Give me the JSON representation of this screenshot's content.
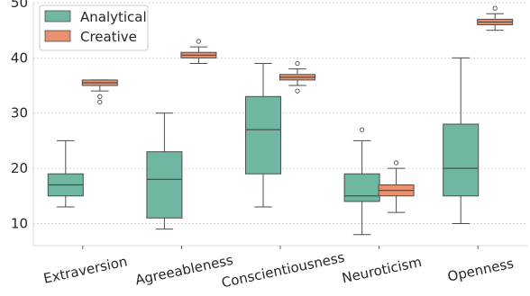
{
  "chart_data": {
    "type": "box",
    "title": "",
    "xlabel": "",
    "ylabel": "",
    "ylim": [
      6,
      50
    ],
    "yticks": [
      10,
      20,
      30,
      40,
      50
    ],
    "grid": "horizontal dashed",
    "legend_position": "top-left",
    "categories": [
      "Extraversion",
      "Agreeableness",
      "Conscientiousness",
      "Neuroticism",
      "Openness"
    ],
    "series": [
      {
        "name": "Analytical",
        "color": "#6fb7a2",
        "boxes": [
          {
            "whisker_low": 13,
            "q1": 15,
            "median": 17,
            "q3": 19,
            "whisker_high": 25,
            "outliers": []
          },
          {
            "whisker_low": 9,
            "q1": 11,
            "median": 18,
            "q3": 23,
            "whisker_high": 30,
            "outliers": []
          },
          {
            "whisker_low": 13,
            "q1": 19,
            "median": 27,
            "q3": 33,
            "whisker_high": 39,
            "outliers": []
          },
          {
            "whisker_low": 8,
            "q1": 14,
            "median": 15,
            "q3": 19,
            "whisker_high": 25,
            "outliers": [
              27
            ]
          },
          {
            "whisker_low": 10,
            "q1": 15,
            "median": 20,
            "q3": 28,
            "whisker_high": 40,
            "outliers": []
          }
        ]
      },
      {
        "name": "Creative",
        "color": "#e9916f",
        "boxes": [
          {
            "whisker_low": 34,
            "q1": 35,
            "median": 35.5,
            "q3": 36,
            "whisker_high": 36,
            "outliers": [
              33,
              32
            ]
          },
          {
            "whisker_low": 39,
            "q1": 40,
            "median": 40.5,
            "q3": 41,
            "whisker_high": 42,
            "outliers": [
              43
            ]
          },
          {
            "whisker_low": 35,
            "q1": 36,
            "median": 36.5,
            "q3": 37,
            "whisker_high": 38,
            "outliers": [
              39,
              34
            ]
          },
          {
            "whisker_low": 12,
            "q1": 15,
            "median": 16,
            "q3": 17,
            "whisker_high": 20,
            "outliers": [
              21
            ]
          },
          {
            "whisker_low": 45,
            "q1": 46,
            "median": 46.5,
            "q3": 47,
            "whisker_high": 48,
            "outliers": [
              49
            ]
          }
        ]
      }
    ]
  }
}
